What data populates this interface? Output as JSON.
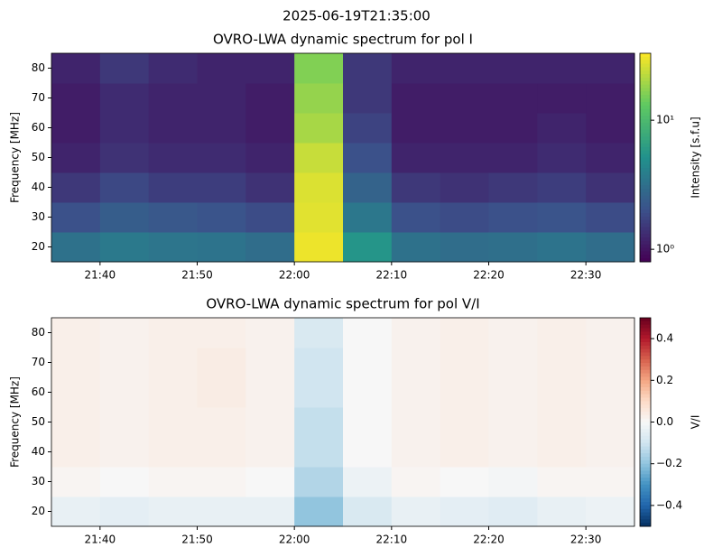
{
  "title": "2025-06-19T21:35:00",
  "chart_data": [
    {
      "type": "heatmap",
      "title": "OVRO-LWA dynamic spectrum for pol I",
      "y_label": "Frequency [MHz]",
      "colorbar_label": "Intensity [s.f.u]",
      "colormap": "viridis",
      "color_scale": "log",
      "clim": [
        0.8,
        33
      ],
      "cticks": [
        {
          "value": 1,
          "label": "10⁰"
        },
        {
          "value": 10,
          "label": "10¹"
        }
      ],
      "xbins": [
        "21:35",
        "21:40",
        "21:45",
        "21:50",
        "21:55",
        "22:00",
        "22:05",
        "22:10",
        "22:15",
        "22:20",
        "22:25",
        "22:30",
        "22:35"
      ],
      "ybins": [
        15,
        25,
        35,
        45,
        55,
        65,
        75,
        85
      ],
      "xlim": [
        "21:35",
        "22:35"
      ],
      "xticks": [
        "21:40",
        "21:50",
        "22:00",
        "22:10",
        "22:20",
        "22:30"
      ],
      "ylim": [
        15,
        85
      ],
      "yticks": [
        20,
        30,
        40,
        50,
        60,
        70,
        80
      ],
      "z": [
        [
          3.2,
          3.6,
          3.4,
          3.3,
          3.0,
          30,
          5.5,
          3.2,
          3.0,
          3.1,
          3.3,
          3.0
        ],
        [
          2.0,
          2.4,
          2.2,
          2.1,
          1.9,
          28,
          3.5,
          2.0,
          1.9,
          2.0,
          2.1,
          1.9
        ],
        [
          1.5,
          1.8,
          1.6,
          1.6,
          1.4,
          27,
          2.6,
          1.5,
          1.4,
          1.5,
          1.6,
          1.4
        ],
        [
          1.2,
          1.4,
          1.3,
          1.3,
          1.2,
          24,
          2.0,
          1.2,
          1.2,
          1.2,
          1.3,
          1.2
        ],
        [
          1.1,
          1.3,
          1.2,
          1.2,
          1.1,
          20,
          1.7,
          1.1,
          1.1,
          1.1,
          1.2,
          1.1
        ],
        [
          1.1,
          1.3,
          1.2,
          1.2,
          1.1,
          18,
          1.5,
          1.1,
          1.1,
          1.1,
          1.1,
          1.1
        ],
        [
          1.2,
          1.5,
          1.3,
          1.2,
          1.2,
          16,
          1.5,
          1.2,
          1.2,
          1.2,
          1.2,
          1.2
        ]
      ]
    },
    {
      "type": "heatmap",
      "title": "OVRO-LWA dynamic spectrum for pol V/I",
      "y_label": "Frequency [MHz]",
      "colorbar_label": "V/I",
      "colormap": "RdBu_r",
      "color_scale": "linear",
      "clim": [
        -0.5,
        0.5
      ],
      "cticks": [
        {
          "value": -0.4,
          "label": "−0.4"
        },
        {
          "value": -0.2,
          "label": "−0.2"
        },
        {
          "value": 0,
          "label": "0.0"
        },
        0.2,
        0.4
      ],
      "xbins": [
        "21:35",
        "21:40",
        "21:45",
        "21:50",
        "21:55",
        "22:00",
        "22:05",
        "22:10",
        "22:15",
        "22:20",
        "22:25",
        "22:30",
        "22:35"
      ],
      "ybins": [
        15,
        25,
        35,
        45,
        55,
        65,
        75,
        85
      ],
      "xlim": [
        "21:35",
        "22:35"
      ],
      "xticks": [
        "21:40",
        "21:50",
        "22:00",
        "22:10",
        "22:20",
        "22:30"
      ],
      "ylim": [
        15,
        85
      ],
      "yticks": [
        20,
        30,
        40,
        50,
        60,
        70,
        80
      ],
      "z": [
        [
          -0.04,
          -0.05,
          -0.04,
          -0.04,
          -0.04,
          -0.2,
          -0.08,
          -0.04,
          -0.05,
          -0.06,
          -0.04,
          -0.03
        ],
        [
          0.01,
          0.0,
          0.01,
          0.01,
          0.0,
          -0.15,
          -0.03,
          0.01,
          0.0,
          -0.01,
          0.01,
          0.01
        ],
        [
          0.03,
          0.02,
          0.03,
          0.03,
          0.02,
          -0.12,
          0.0,
          0.02,
          0.03,
          0.02,
          0.03,
          0.02
        ],
        [
          0.03,
          0.02,
          0.03,
          0.03,
          0.02,
          -0.12,
          0.0,
          0.02,
          0.03,
          0.02,
          0.03,
          0.02
        ],
        [
          0.03,
          0.02,
          0.03,
          0.04,
          0.02,
          -0.1,
          0.0,
          0.02,
          0.03,
          0.02,
          0.03,
          0.02
        ],
        [
          0.03,
          0.02,
          0.03,
          0.04,
          0.02,
          -0.1,
          0.0,
          0.02,
          0.03,
          0.02,
          0.03,
          0.02
        ],
        [
          0.03,
          0.02,
          0.03,
          0.03,
          0.02,
          -0.08,
          0.0,
          0.02,
          0.03,
          0.02,
          0.03,
          0.02
        ]
      ]
    }
  ]
}
